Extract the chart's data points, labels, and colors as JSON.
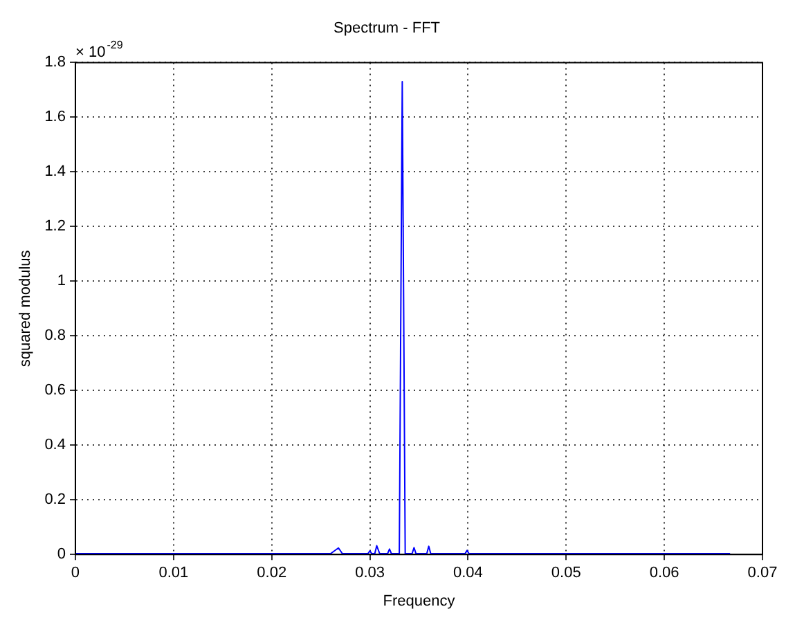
{
  "chart_data": {
    "type": "line",
    "title": "Spectrum - FFT",
    "xlabel": "Frequency",
    "ylabel": "squared modulus",
    "annotations": [
      "× 10$^{-29}$"
    ],
    "xlim": [
      0,
      0.07
    ],
    "xticks": [
      0,
      0.01,
      0.02,
      0.03,
      0.04,
      0.05,
      0.06,
      0.07
    ],
    "ylim": [
      0,
      1.8
    ],
    "yticks": [
      0,
      0.2,
      0.4,
      0.6,
      0.8,
      1,
      1.2,
      1.4,
      1.6,
      1.8
    ],
    "grid": true,
    "marker": "none",
    "line_style": "solid",
    "series": [
      {
        "color": "#0000ff",
        "x": [
          0,
          0.026,
          0.0268,
          0.0272,
          0.0298,
          0.03,
          0.0302,
          0.0305,
          0.0307,
          0.031,
          0.0318,
          0.032,
          0.0322,
          0.033,
          0.0333,
          0.0336,
          0.0343,
          0.0345,
          0.0347,
          0.0358,
          0.036,
          0.0362,
          0.0397,
          0.0399,
          0.0401,
          0.0667
        ],
        "values": [
          0.003,
          0.003,
          0.024,
          0.003,
          0.003,
          0.013,
          0.003,
          0.003,
          0.032,
          0.003,
          0.003,
          0.02,
          0.003,
          0.003,
          1.73,
          0.003,
          0.003,
          0.025,
          0.003,
          0.003,
          0.03,
          0.003,
          0.003,
          0.015,
          0.003,
          0.003
        ]
      }
    ]
  }
}
